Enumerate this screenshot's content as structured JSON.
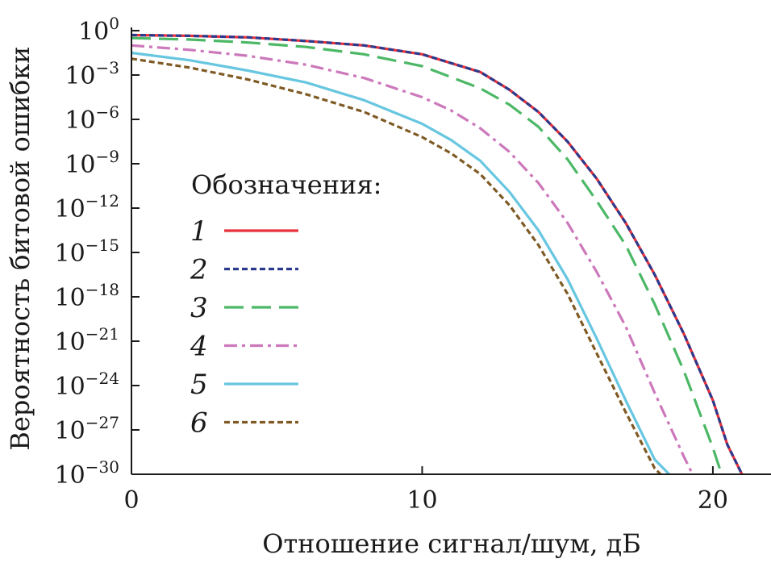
{
  "chart_data": {
    "type": "line",
    "xlabel": "Отношение сигнал/шум, дБ",
    "ylabel": "Вероятность битовой ошибки",
    "xlim": [
      0,
      22
    ],
    "ylim_exponent": [
      -30,
      0
    ],
    "y_scale": "log",
    "x_ticks": [
      "0",
      "10",
      "20"
    ],
    "x_tick_values": [
      0,
      10,
      20
    ],
    "y_ticks": [
      {
        "base": "10",
        "exp": "0",
        "value": 0
      },
      {
        "base": "10",
        "exp": "−3",
        "value": -3
      },
      {
        "base": "10",
        "exp": "−6",
        "value": -6
      },
      {
        "base": "10",
        "exp": "−9",
        "value": -9
      },
      {
        "base": "10",
        "exp": "−12",
        "value": -12
      },
      {
        "base": "10",
        "exp": "−15",
        "value": -15
      },
      {
        "base": "10",
        "exp": "−18",
        "value": -18
      },
      {
        "base": "10",
        "exp": "−21",
        "value": -21
      },
      {
        "base": "10",
        "exp": "−24",
        "value": -24
      },
      {
        "base": "10",
        "exp": "−27",
        "value": -27
      },
      {
        "base": "10",
        "exp": "−30",
        "value": -30
      }
    ],
    "legend_title": "Обозначения:",
    "legend_position": "center-left",
    "series": [
      {
        "name": "1",
        "color": "#e8313a",
        "dash": "solid",
        "x": [
          0,
          2,
          4,
          6,
          8,
          10,
          12,
          13,
          14,
          15,
          16,
          17,
          18,
          19,
          20,
          20.5,
          21
        ],
        "log10_y": [
          -0.3,
          -0.35,
          -0.45,
          -0.7,
          -1.0,
          -1.6,
          -2.8,
          -4.0,
          -5.5,
          -7.5,
          -10.0,
          -13.0,
          -16.5,
          -20.5,
          -25.0,
          -28.0,
          -30.0
        ]
      },
      {
        "name": "2",
        "color": "#2b3a8c",
        "dash": "short",
        "x": [
          0,
          2,
          4,
          6,
          8,
          10,
          12,
          13,
          14,
          15,
          16,
          17,
          18,
          19,
          20,
          20.5,
          21
        ],
        "log10_y": [
          -0.3,
          -0.35,
          -0.45,
          -0.7,
          -1.0,
          -1.6,
          -2.8,
          -4.0,
          -5.5,
          -7.5,
          -10.0,
          -13.0,
          -16.5,
          -20.5,
          -25.0,
          -28.0,
          -30.0
        ]
      },
      {
        "name": "3",
        "color": "#4cb866",
        "dash": "long",
        "x": [
          0,
          2,
          4,
          6,
          8,
          10,
          12,
          13,
          14,
          15,
          16,
          17,
          18,
          19,
          20,
          20.3
        ],
        "log10_y": [
          -0.5,
          -0.6,
          -0.8,
          -1.1,
          -1.6,
          -2.4,
          -3.9,
          -5.0,
          -6.5,
          -8.7,
          -11.5,
          -14.5,
          -18.5,
          -23.0,
          -28.2,
          -30.0
        ]
      },
      {
        "name": "4",
        "color": "#cc78bb",
        "dash": "dashdot",
        "x": [
          0,
          2,
          4,
          6,
          8,
          10,
          11,
          12,
          13,
          14,
          15,
          16,
          17,
          18,
          19,
          19.3
        ],
        "log10_y": [
          -1.0,
          -1.3,
          -1.7,
          -2.3,
          -3.2,
          -4.5,
          -5.4,
          -6.6,
          -8.2,
          -10.3,
          -13.0,
          -16.3,
          -20.0,
          -24.5,
          -28.8,
          -30.0
        ]
      },
      {
        "name": "5",
        "color": "#67c6e0",
        "dash": "solid",
        "x": [
          0,
          2,
          4,
          6,
          8,
          10,
          11,
          12,
          13,
          14,
          15,
          16,
          17,
          18,
          18.5
        ],
        "log10_y": [
          -1.5,
          -2.0,
          -2.7,
          -3.5,
          -4.7,
          -6.3,
          -7.4,
          -8.8,
          -10.9,
          -13.5,
          -16.8,
          -20.8,
          -25.0,
          -29.0,
          -30.0
        ]
      },
      {
        "name": "6",
        "color": "#7f5a24",
        "dash": "short",
        "x": [
          0,
          2,
          4,
          6,
          8,
          10,
          11,
          12,
          13,
          14,
          15,
          16,
          17,
          18,
          18.2
        ],
        "log10_y": [
          -1.9,
          -2.5,
          -3.3,
          -4.3,
          -5.5,
          -7.2,
          -8.3,
          -9.7,
          -11.8,
          -14.5,
          -17.8,
          -21.8,
          -25.8,
          -29.6,
          -30.0
        ]
      }
    ]
  }
}
